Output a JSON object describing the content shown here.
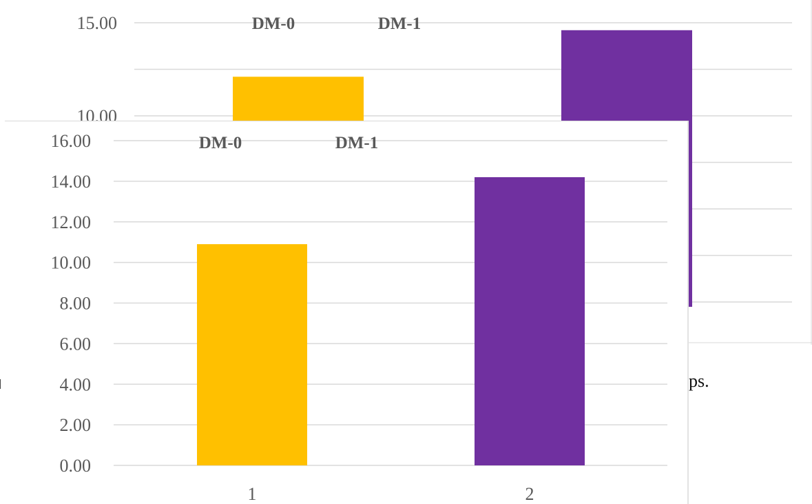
{
  "colors": {
    "series_1": "#FFC000",
    "series_2": "#7030A0",
    "grid": "#D9D9D9",
    "border": "#D9D9D9",
    "text": "#595959"
  },
  "partial_text": "ps.",
  "chart_data": [
    {
      "type": "bar",
      "role": "background chart (partially covered)",
      "legend": [
        "DM-0",
        "DM-1"
      ],
      "legend_position": "top",
      "tick_labels_visible": [
        "15.00",
        "10.00"
      ],
      "categories": [
        "1",
        "2"
      ],
      "values": [
        12.1,
        14.6
      ],
      "ylim": [
        10,
        15
      ],
      "grid": true
    },
    {
      "type": "bar",
      "role": "foreground chart",
      "legend": [
        "DM-0",
        "DM-1"
      ],
      "legend_position": "top",
      "yticks": [
        "0.00",
        "2.00",
        "4.00",
        "6.00",
        "8.00",
        "10.00",
        "12.00",
        "14.00",
        "16.00"
      ],
      "categories": [
        "1",
        "2"
      ],
      "values": [
        10.9,
        14.2
      ],
      "ylim": [
        0,
        16
      ],
      "grid": true,
      "xlabel": "",
      "ylabel": ""
    }
  ]
}
